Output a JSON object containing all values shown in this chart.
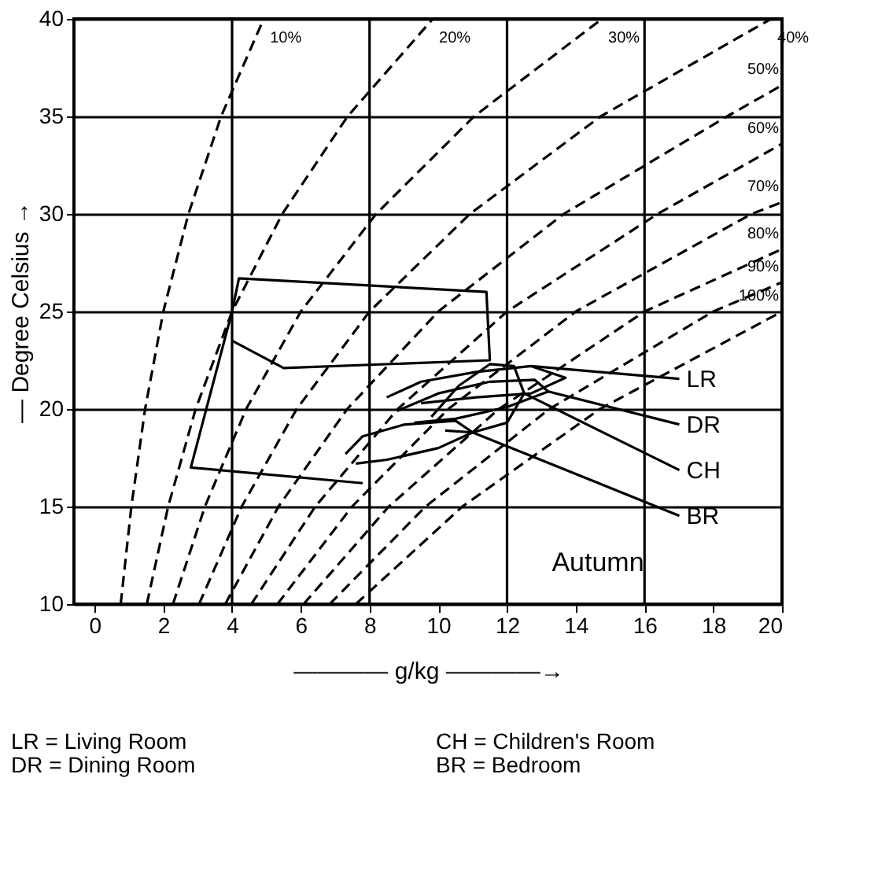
{
  "chart_data": {
    "type": "line",
    "xlabel": "———— g/kg ————→",
    "ylabel": "— Degree Celsius →",
    "xlim": [
      -0.6,
      20
    ],
    "ylim": [
      10,
      40
    ],
    "xticks": [
      0,
      2,
      4,
      6,
      8,
      10,
      12,
      14,
      16,
      18,
      20
    ],
    "yticks": [
      10,
      15,
      20,
      25,
      30,
      35,
      40
    ],
    "grid": "y",
    "marker": "none",
    "ref_lines": [
      {
        "axis": "x",
        "value": 4,
        "color": "#000000"
      },
      {
        "axis": "x",
        "value": 8,
        "color": "#000000"
      },
      {
        "axis": "x",
        "value": 12,
        "color": "#000000"
      },
      {
        "axis": "x",
        "value": 16,
        "color": "#000000"
      }
    ],
    "series": [
      {
        "name": "10%",
        "color": "#000000",
        "line_style": "dashed",
        "x": [
          0.76,
          1.07,
          1.47,
          2.0,
          2.73,
          3.68,
          4.92
        ],
        "values": [
          10,
          15,
          20,
          25,
          30,
          35,
          40
        ]
      },
      {
        "name": "20%",
        "color": "#000000",
        "line_style": "dashed",
        "x": [
          1.52,
          2.14,
          2.94,
          4.0,
          5.46,
          7.36,
          9.84
        ],
        "values": [
          10,
          15,
          20,
          25,
          30,
          35,
          40
        ]
      },
      {
        "name": "30%",
        "color": "#000000",
        "line_style": "dashed",
        "x": [
          2.28,
          3.21,
          4.41,
          6.0,
          8.19,
          11.04,
          14.76
        ],
        "values": [
          10,
          15,
          20,
          25,
          30,
          35,
          40
        ]
      },
      {
        "name": "40%",
        "color": "#000000",
        "line_style": "dashed",
        "x": [
          3.04,
          4.28,
          5.88,
          8.0,
          10.92,
          14.72,
          19.68
        ],
        "values": [
          10,
          15,
          20,
          25,
          30,
          35,
          40
        ]
      },
      {
        "name": "50%",
        "color": "#000000",
        "line_style": "dashed",
        "x": [
          3.8,
          5.35,
          7.35,
          10.0,
          13.65,
          18.4,
          20
        ],
        "values": [
          10,
          15,
          20,
          25,
          30,
          35,
          36.6
        ]
      },
      {
        "name": "60%",
        "color": "#000000",
        "line_style": "dashed",
        "x": [
          4.56,
          6.42,
          8.82,
          12.0,
          16.38,
          20
        ],
        "values": [
          10,
          15,
          20,
          25,
          30,
          33.6
        ]
      },
      {
        "name": "70%",
        "color": "#000000",
        "line_style": "dashed",
        "x": [
          5.32,
          7.49,
          10.29,
          14.0,
          19.11,
          20
        ],
        "values": [
          10,
          15,
          20,
          25,
          30,
          30.6
        ]
      },
      {
        "name": "80%",
        "color": "#000000",
        "line_style": "dashed",
        "x": [
          6.08,
          8.56,
          11.76,
          16.0,
          20
        ],
        "values": [
          10,
          15,
          20,
          25,
          28.2
        ]
      },
      {
        "name": "90%",
        "color": "#000000",
        "line_style": "dashed",
        "x": [
          6.84,
          9.63,
          13.23,
          18.0,
          20
        ],
        "values": [
          10,
          15,
          20,
          25,
          26.5
        ]
      },
      {
        "name": "100%",
        "color": "#000000",
        "line_style": "dashed",
        "x": [
          7.6,
          10.7,
          14.7,
          20.0
        ],
        "values": [
          10,
          15,
          20,
          25
        ]
      },
      {
        "color": "#000000",
        "line_style": "solid",
        "x": [
          7.8,
          2.8,
          4.0,
          4.2,
          11.4,
          11.5,
          5.5,
          4.0
        ],
        "values": [
          16.2,
          17.0,
          25.0,
          26.7,
          26.0,
          22.5,
          22.1,
          23.5
        ]
      },
      {
        "color": "#000000",
        "line_style": "solid",
        "x": [
          8.5,
          9.5,
          11.1,
          12.7,
          13.7,
          12.7,
          11.1,
          9.5
        ],
        "values": [
          20.6,
          21.4,
          21.9,
          22.2,
          21.6,
          20.8,
          20.6,
          20.3
        ]
      },
      {
        "color": "#000000",
        "line_style": "solid",
        "x": [
          8.8,
          10.0,
          11.5,
          12.8,
          13.2,
          12.0,
          10.5,
          9.3
        ],
        "values": [
          19.9,
          20.8,
          21.4,
          21.5,
          20.9,
          20.1,
          19.5,
          19.3
        ]
      },
      {
        "color": "#000000",
        "line_style": "solid",
        "x": [
          9.8,
          10.6,
          11.5,
          12.2,
          12.5,
          12.0,
          11.0,
          10.2
        ],
        "values": [
          19.6,
          21.2,
          22.3,
          22.2,
          20.8,
          19.3,
          18.8,
          18.9
        ]
      },
      {
        "color": "#000000",
        "line_style": "solid",
        "x": [
          7.3,
          7.8,
          9.0,
          10.5,
          11.0,
          10.0,
          8.5,
          7.6
        ],
        "values": [
          17.7,
          18.6,
          19.2,
          19.4,
          18.8,
          18.0,
          17.4,
          17.2
        ]
      }
    ],
    "annotations": [
      {
        "text": "LR",
        "x": 12.7,
        "y": 22.2
      },
      {
        "text": "DR",
        "x": 13.2,
        "y": 20.9
      },
      {
        "text": "CH",
        "x": 12.5,
        "y": 20.8
      },
      {
        "text": "BR",
        "x": 11.0,
        "y": 18.8
      },
      "Autumn",
      "LR = Living Room",
      "CH = Children's Room",
      "DR = Dining Room",
      "BR = Bedroom"
    ]
  }
}
